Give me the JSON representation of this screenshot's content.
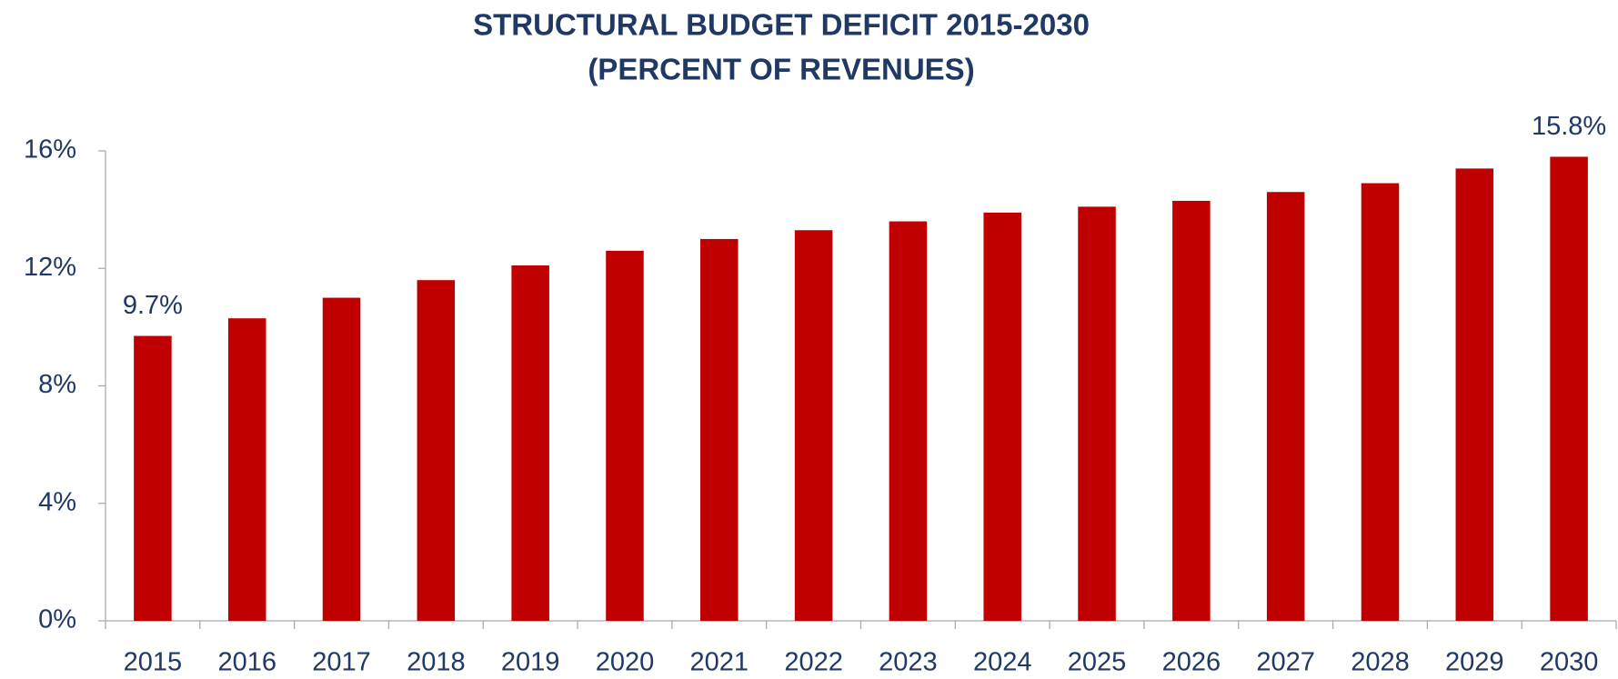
{
  "chart_data": {
    "type": "bar",
    "title": "STRUCTURAL BUDGET DEFICIT 2015-2030",
    "subtitle": "(PERCENT OF REVENUES)",
    "categories": [
      "2015",
      "2016",
      "2017",
      "2018",
      "2019",
      "2020",
      "2021",
      "2022",
      "2023",
      "2024",
      "2025",
      "2026",
      "2027",
      "2028",
      "2029",
      "2030"
    ],
    "values": [
      9.7,
      10.3,
      11.0,
      11.6,
      12.1,
      12.6,
      13.0,
      13.3,
      13.6,
      13.9,
      14.1,
      14.3,
      14.6,
      14.9,
      15.4,
      15.8
    ],
    "value_labels": [
      "9.7%",
      null,
      null,
      null,
      null,
      null,
      null,
      null,
      null,
      null,
      null,
      null,
      null,
      null,
      null,
      "15.8%"
    ],
    "color": "#c00000",
    "ylim": [
      0,
      16
    ],
    "yticks": [
      {
        "value": 0,
        "label": "0%"
      },
      {
        "value": 4,
        "label": "4%"
      },
      {
        "value": 8,
        "label": "8%"
      },
      {
        "value": 12,
        "label": "12%"
      },
      {
        "value": 16,
        "label": "16%"
      }
    ],
    "grid": false
  }
}
